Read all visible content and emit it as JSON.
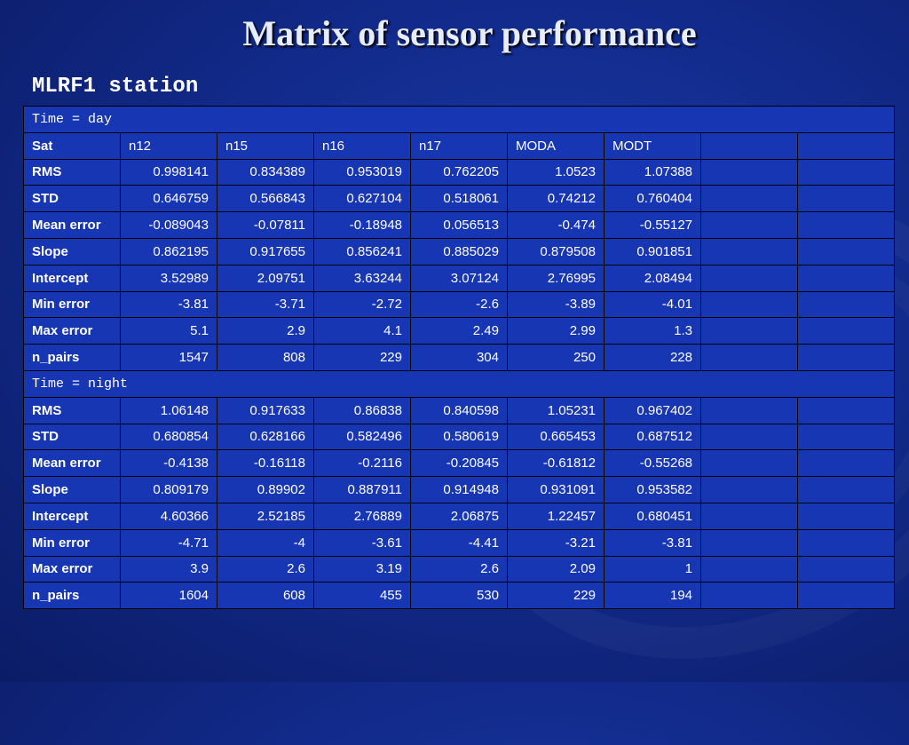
{
  "title": "Matrix of sensor performance",
  "subtitle": "MLRF1 station",
  "highlight_color": "#ffd21f",
  "header": [
    "Sat",
    "n12",
    "n15",
    "n16",
    "n17",
    "MODA",
    "MODT",
    "",
    ""
  ],
  "sections": [
    {
      "label": "Time = day",
      "rows": [
        {
          "metric": "RMS",
          "values": [
            "0.998141",
            "0.834389",
            "0.953019",
            "0.762205",
            "1.0523",
            "1.07388",
            "",
            ""
          ]
        },
        {
          "metric": "STD",
          "values": [
            "0.646759",
            "0.566843",
            "0.627104",
            "0.518061",
            "0.74212",
            "0.760404",
            "",
            ""
          ]
        },
        {
          "metric": "Mean error",
          "values": [
            "-0.089043",
            "-0.07811",
            "-0.18948",
            "0.056513",
            "-0.474",
            "-0.55127",
            "",
            ""
          ]
        },
        {
          "metric": "Slope",
          "values": [
            "0.862195",
            "0.917655",
            "0.856241",
            "0.885029",
            "0.879508",
            "0.901851",
            "",
            ""
          ]
        },
        {
          "metric": "Intercept",
          "values": [
            "3.52989",
            "2.09751",
            "3.63244",
            "3.07124",
            "2.76995",
            "2.08494",
            "",
            ""
          ]
        },
        {
          "metric": "Min error",
          "values": [
            "-3.81",
            "-3.71",
            "-2.72",
            "-2.6",
            "-3.89",
            "-4.01",
            "",
            ""
          ]
        },
        {
          "metric": "Max error",
          "values": [
            "5.1",
            "2.9",
            "4.1",
            "2.49",
            "2.99",
            "1.3",
            "",
            ""
          ]
        },
        {
          "metric": "n_pairs",
          "values": [
            "1547",
            "808",
            "229",
            "304",
            "250",
            "228",
            "",
            ""
          ]
        }
      ]
    },
    {
      "label": "Time = night",
      "rows": [
        {
          "metric": "RMS",
          "values": [
            "1.06148",
            "0.917633",
            "0.86838",
            "0.840598",
            "1.05231",
            "0.967402",
            "",
            ""
          ]
        },
        {
          "metric": "STD",
          "values": [
            "0.680854",
            "0.628166",
            "0.582496",
            "0.580619",
            "0.665453",
            "0.687512",
            "",
            ""
          ]
        },
        {
          "metric": "Mean error",
          "values": [
            "-0.4138",
            "-0.16118",
            "-0.2116",
            "-0.20845",
            "-0.61812",
            "-0.55268",
            "",
            ""
          ]
        },
        {
          "metric": "Slope",
          "values": [
            "0.809179",
            "0.89902",
            "0.887911",
            "0.914948",
            "0.931091",
            "0.953582",
            "",
            ""
          ]
        },
        {
          "metric": "Intercept",
          "values": [
            "4.60366",
            "2.52185",
            "2.76889",
            "2.06875",
            "1.22457",
            "0.680451",
            "",
            ""
          ]
        },
        {
          "metric": "Min error",
          "values": [
            "-4.71",
            "-4",
            "-3.61",
            "-4.41",
            "-3.21",
            "-3.81",
            "",
            ""
          ]
        },
        {
          "metric": "Max error",
          "values": [
            "3.9",
            "2.6",
            "3.19",
            "2.6",
            "2.09",
            "1",
            "",
            ""
          ]
        },
        {
          "metric": "n_pairs",
          "values": [
            "1604",
            "608",
            "455",
            "530",
            "229",
            "194",
            "",
            ""
          ]
        }
      ]
    }
  ]
}
